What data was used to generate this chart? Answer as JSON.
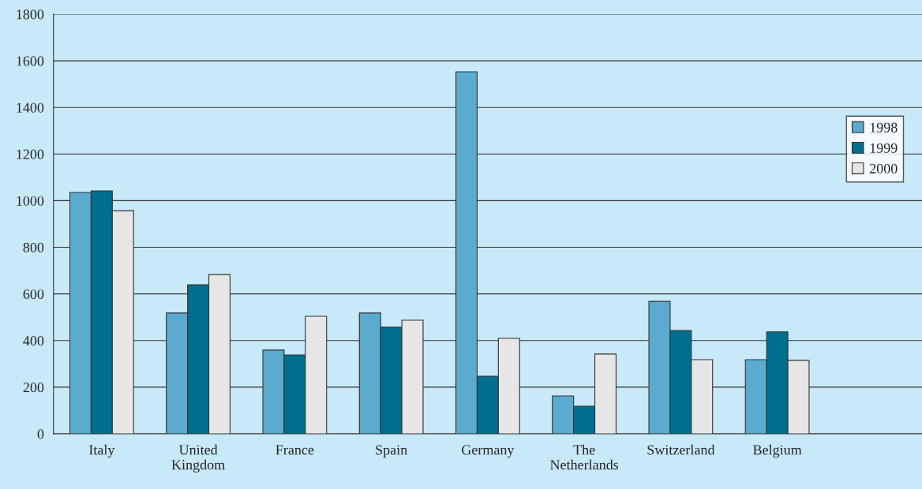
{
  "chart_data": {
    "type": "bar",
    "categories": [
      "Italy",
      "United\nKingdom",
      "France",
      "Spain",
      "Germany",
      "The\nNetherlands",
      "Switzerland",
      "Belgium",
      null
    ],
    "series": [
      {
        "name": "1998",
        "color": "#5aabcf",
        "values": [
          1035,
          518,
          359,
          518,
          1553,
          162,
          568,
          318,
          null
        ]
      },
      {
        "name": "1999",
        "color": "#006e8f",
        "values": [
          1042,
          639,
          338,
          457,
          247,
          118,
          443,
          437,
          null
        ]
      },
      {
        "name": "2000",
        "color": "#e6e6e6",
        "values": [
          957,
          683,
          504,
          487,
          409,
          342,
          318,
          315,
          null
        ]
      }
    ],
    "ylim": [
      0,
      1800
    ],
    "yticks": [
      0,
      200,
      400,
      600,
      800,
      1000,
      1200,
      1400,
      1600,
      1800
    ],
    "grid": "y",
    "legend": "top right"
  }
}
